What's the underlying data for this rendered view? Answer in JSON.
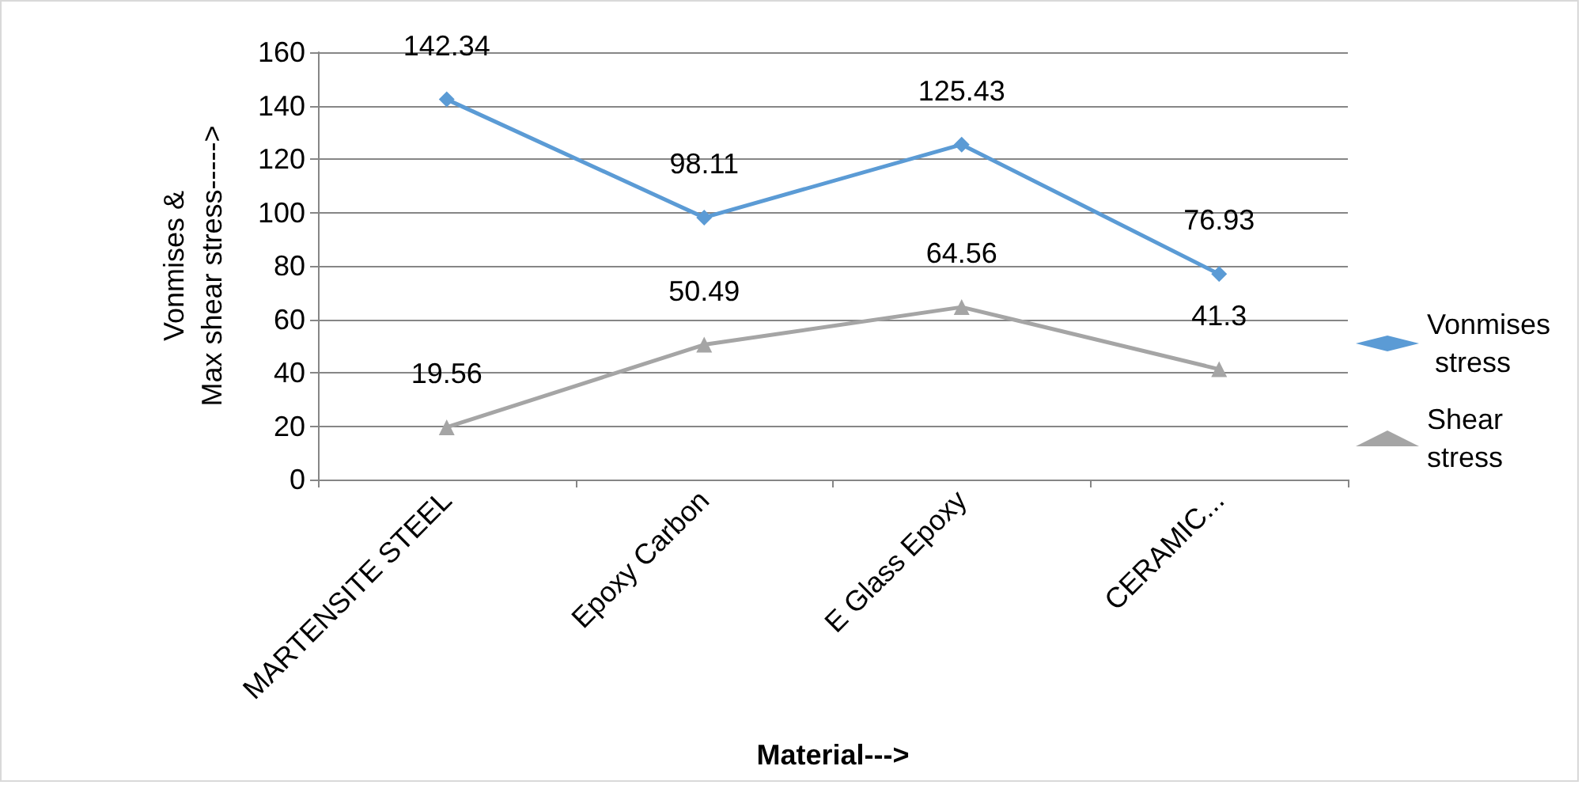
{
  "chart_data": {
    "type": "line",
    "xlabel": "Material--->",
    "ylabel": "Vonmises &\nMax shear stress----->",
    "categories": [
      "MARTENSITE STEEL",
      "Epoxy Carbon",
      "E Glass Epoxy",
      "CERAMIC..."
    ],
    "series": [
      {
        "name": "Vonmises stress",
        "color": "#5b9bd5",
        "marker": "diamond",
        "values": [
          142.34,
          98.11,
          125.43,
          76.93
        ]
      },
      {
        "name": "Shear stress",
        "color": "#a5a5a5",
        "marker": "triangle",
        "values": [
          19.56,
          50.49,
          64.56,
          41.3
        ]
      }
    ],
    "ylim": [
      0,
      160
    ],
    "yticks": [
      0,
      20,
      40,
      60,
      80,
      100,
      120,
      140,
      160
    ],
    "grid": "y",
    "legend": "right",
    "data_labels": true
  }
}
